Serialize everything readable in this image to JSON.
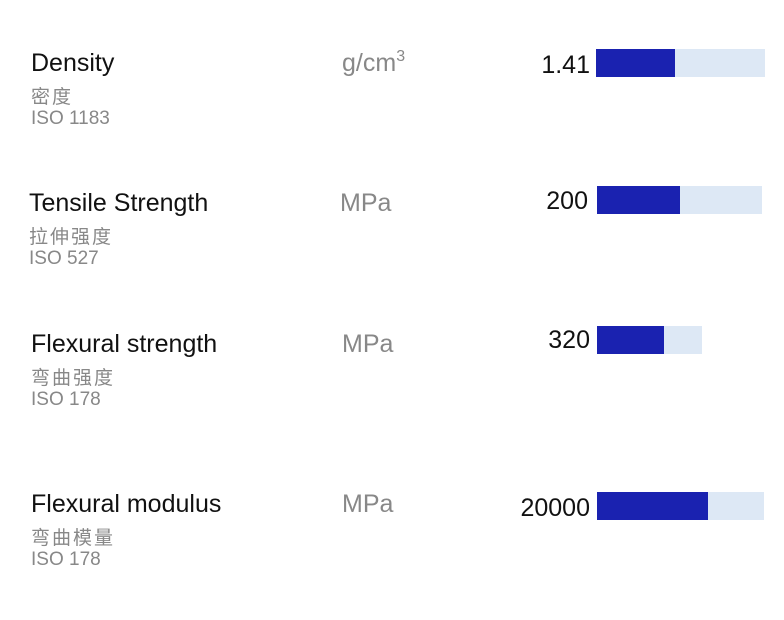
{
  "rows": [
    {
      "name": "Density",
      "name_zh": "密度",
      "standard": "ISO 1183",
      "unit": "g/cm",
      "unit_sup": "3",
      "value": 1.41
    },
    {
      "name": "Tensile Strength",
      "name_zh": "拉伸强度",
      "standard": "ISO 527",
      "unit": "MPa",
      "value": 200
    },
    {
      "name": "Flexural strength",
      "name_zh": "弯曲强度",
      "standard": "ISO 178",
      "unit": "MPa",
      "value": 320
    },
    {
      "name": "Flexural modulus",
      "name_zh": "弯曲模量",
      "standard": "ISO 178",
      "unit": "MPa",
      "value": 20000
    }
  ]
}
